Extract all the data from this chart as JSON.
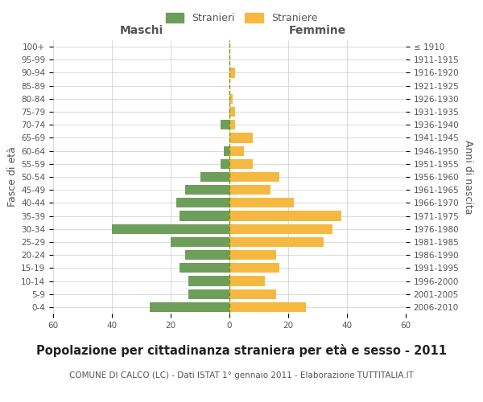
{
  "age_groups": [
    "0-4",
    "5-9",
    "10-14",
    "15-19",
    "20-24",
    "25-29",
    "30-34",
    "35-39",
    "40-44",
    "45-49",
    "50-54",
    "55-59",
    "60-64",
    "65-69",
    "70-74",
    "75-79",
    "80-84",
    "85-89",
    "90-94",
    "95-99",
    "100+"
  ],
  "birth_years": [
    "2006-2010",
    "2001-2005",
    "1996-2000",
    "1991-1995",
    "1986-1990",
    "1981-1985",
    "1976-1980",
    "1971-1975",
    "1966-1970",
    "1961-1965",
    "1956-1960",
    "1951-1955",
    "1946-1950",
    "1941-1945",
    "1936-1940",
    "1931-1935",
    "1926-1930",
    "1921-1925",
    "1916-1920",
    "1911-1915",
    "≤ 1910"
  ],
  "males": [
    27,
    14,
    14,
    17,
    15,
    20,
    40,
    17,
    18,
    15,
    10,
    3,
    2,
    0,
    3,
    0,
    0,
    0,
    0,
    0,
    0
  ],
  "females": [
    26,
    16,
    12,
    17,
    16,
    32,
    35,
    38,
    22,
    14,
    17,
    8,
    5,
    8,
    2,
    2,
    1,
    0,
    2,
    0,
    0
  ],
  "male_color": "#6d9e5a",
  "female_color": "#f5b942",
  "center_line_color": "#8b8b00",
  "background_color": "#ffffff",
  "grid_color": "#cccccc",
  "title": "Popolazione per cittadinanza straniera per età e sesso - 2011",
  "subtitle": "COMUNE DI CALCO (LC) - Dati ISTAT 1° gennaio 2011 - Elaborazione TUTTITALIA.IT",
  "ylabel_left": "Fasce di età",
  "ylabel_right": "Anni di nascita",
  "xlabel_left": "Maschi",
  "xlabel_right": "Femmine",
  "legend_male": "Stranieri",
  "legend_female": "Straniere",
  "xlim": 60,
  "title_fontsize": 10.5,
  "subtitle_fontsize": 7.5,
  "label_fontsize": 9,
  "tick_fontsize": 7.5
}
